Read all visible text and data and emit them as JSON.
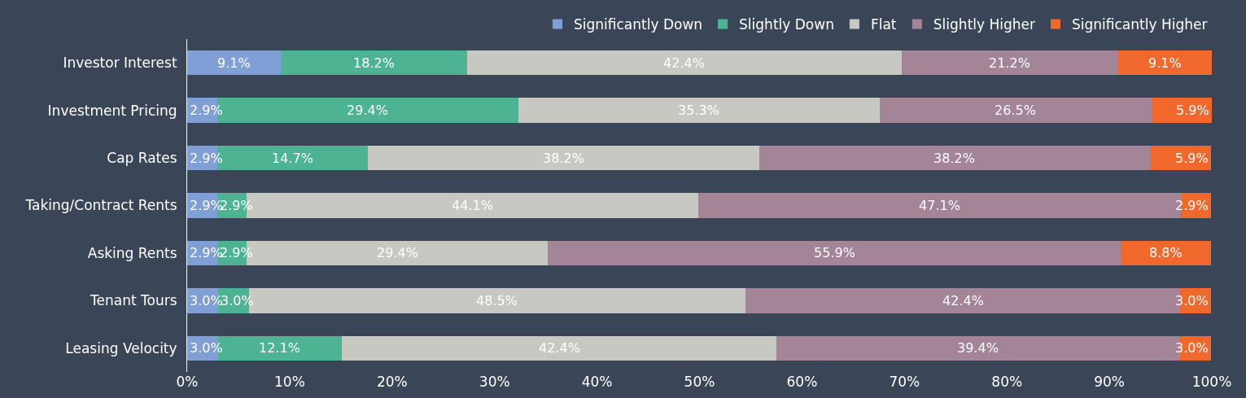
{
  "chart_data": {
    "type": "bar",
    "orientation": "horizontal",
    "stacked": true,
    "legend": "top right",
    "grid": false,
    "categories": [
      "Investor Interest",
      "Investment Pricing",
      "Cap Rates",
      "Taking/Contract Rents",
      "Asking Rents",
      "Tenant Tours",
      "Leasing Velocity"
    ],
    "xlim": [
      0,
      100
    ],
    "xticks": [
      {
        "value": 0,
        "label": "0%"
      },
      {
        "value": 10,
        "label": "10%"
      },
      {
        "value": 20,
        "label": "20%"
      },
      {
        "value": 30,
        "label": "30%"
      },
      {
        "value": 40,
        "label": "40%"
      },
      {
        "value": 50,
        "label": "50%"
      },
      {
        "value": 60,
        "label": "60%"
      },
      {
        "value": 70,
        "label": "70%"
      },
      {
        "value": 80,
        "label": "80%"
      },
      {
        "value": 90,
        "label": "90%"
      },
      {
        "value": 100,
        "label": "100%"
      }
    ],
    "series": [
      {
        "name": "Significantly Down",
        "color": "#7f9fd6",
        "values": [
          9.1,
          2.9,
          2.9,
          2.9,
          2.9,
          3.0,
          3.0
        ],
        "value_labels": [
          "9.1%",
          "2.9%",
          "2.9%",
          "2.9%",
          "2.9%",
          "3.0%",
          "3.0%"
        ]
      },
      {
        "name": "Slightly Down",
        "color": "#4db393",
        "values": [
          18.2,
          29.4,
          14.7,
          2.9,
          2.9,
          3.0,
          12.1
        ],
        "value_labels": [
          "18.2%",
          "29.4%",
          "14.7%",
          "2.9%",
          "2.9%",
          "3.0%",
          "12.1%"
        ]
      },
      {
        "name": "Flat",
        "color": "#c8c8c2",
        "values": [
          42.4,
          35.3,
          38.2,
          44.1,
          29.4,
          48.5,
          42.4
        ],
        "value_labels": [
          "42.4%",
          "35.3%",
          "38.2%",
          "44.1%",
          "29.4%",
          "48.5%",
          "42.4%"
        ]
      },
      {
        "name": "Slightly Higher",
        "color": "#a48497",
        "values": [
          21.2,
          26.5,
          38.2,
          47.1,
          55.9,
          42.4,
          39.4
        ],
        "value_labels": [
          "21.2%",
          "26.5%",
          "38.2%",
          "47.1%",
          "55.9%",
          "42.4%",
          "39.4%"
        ]
      },
      {
        "name": "Significantly Higher",
        "color": "#f0682c",
        "values": [
          9.1,
          5.9,
          5.9,
          2.9,
          8.8,
          3.0,
          3.0
        ],
        "value_labels": [
          "9.1%",
          "5.9%",
          "5.9%",
          "2.9%",
          "8.8%",
          "3.0%",
          "3.0%"
        ]
      }
    ]
  }
}
